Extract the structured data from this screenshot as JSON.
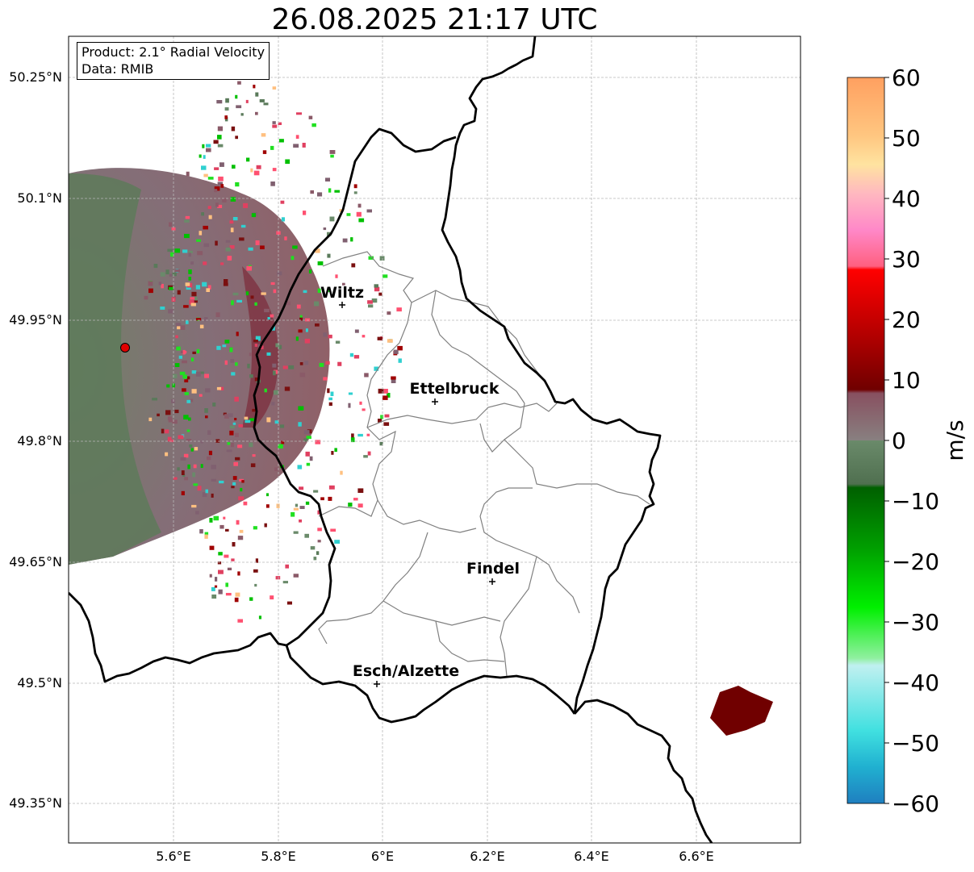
{
  "title": "26.08.2025 21:17 UTC",
  "info": {
    "product": "Product: 2.1° Radial Velocity",
    "data": "Data: RMIB"
  },
  "map": {
    "lat_ticks": [
      "50.25°N",
      "50.1°N",
      "49.95°N",
      "49.8°N",
      "49.65°N",
      "49.5°N",
      "49.35°N"
    ],
    "lon_ticks": [
      "5.6°E",
      "5.8°E",
      "6°E",
      "6.2°E",
      "6.4°E",
      "6.6°E"
    ],
    "cities": [
      {
        "name": "Wiltz"
      },
      {
        "name": "Ettelbruck"
      },
      {
        "name": "Findel"
      },
      {
        "name": "Esch/Alzette"
      }
    ],
    "radar_site_color": "#e00000"
  },
  "colorbar": {
    "unit": "m/s",
    "ticks": [
      "60",
      "50",
      "40",
      "30",
      "20",
      "10",
      "0",
      "−10",
      "−20",
      "−30",
      "−40",
      "−50",
      "−60"
    ],
    "range": [
      -60,
      60
    ],
    "colors": {
      "positive_high": "#ffa060",
      "positive_mid": "#ff4060",
      "positive_low": "#7a0000",
      "zero": "#7a7a70",
      "negative_low": "#006000",
      "negative_mid": "#00f000",
      "negative_high": "#1f7fc0"
    }
  }
}
